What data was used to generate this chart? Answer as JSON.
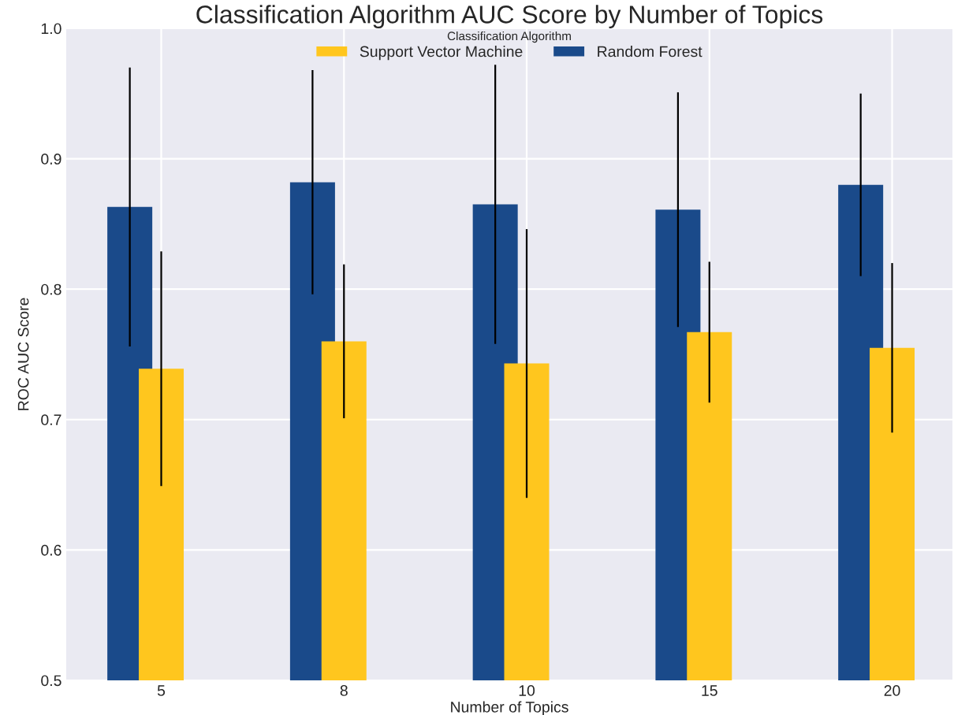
{
  "chart_data": {
    "type": "bar",
    "title": "Classification Algorithm AUC Score by Number of Topics",
    "xlabel": "Number of Topics",
    "ylabel": "ROC AUC Score",
    "legend_title": "Classification Algorithm",
    "categories": [
      "5",
      "8",
      "10",
      "15",
      "20"
    ],
    "series": [
      {
        "name": "Random Forest",
        "color": "#1a4a8a",
        "values": [
          0.863,
          0.882,
          0.865,
          0.861,
          0.88
        ],
        "errors": [
          0.107,
          0.086,
          0.107,
          0.09,
          0.07
        ]
      },
      {
        "name": "Support Vector Machine",
        "color": "#ffc61e",
        "values": [
          0.739,
          0.76,
          0.743,
          0.767,
          0.755
        ],
        "errors": [
          0.09,
          0.059,
          0.103,
          0.054,
          0.065
        ]
      }
    ],
    "ylim": [
      0.5,
      1.0
    ],
    "yticks": [
      0.5,
      0.6,
      0.7,
      0.8,
      0.9,
      {
        "value": 1.0,
        "label": "1.0"
      }
    ],
    "grid": true,
    "legend": "top"
  }
}
